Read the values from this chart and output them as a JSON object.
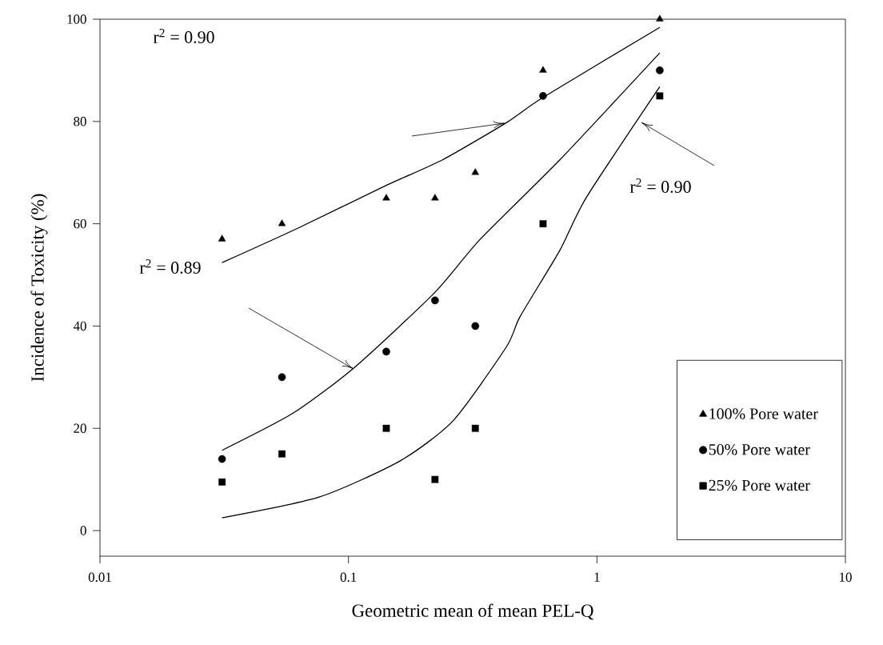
{
  "chart_data": {
    "type": "scatter",
    "xlabel": "Geometric mean of mean PEL-Q",
    "ylabel": "Incidence of Toxicity (%)",
    "log": "x",
    "xlim": [
      0.01,
      10
    ],
    "xticks": [
      0.01,
      0.1,
      1,
      10
    ],
    "ylim": [
      -5,
      100
    ],
    "yticks": [
      0,
      20,
      40,
      60,
      80,
      100
    ],
    "legend": "bottom right",
    "series": [
      {
        "name": "100% Pore water",
        "marker": "triangle",
        "color": "#000000",
        "x": [
          0.031,
          0.054,
          0.142,
          0.223,
          0.324,
          0.607,
          1.79
        ],
        "values": [
          57,
          60,
          65,
          65,
          70,
          90,
          100
        ]
      },
      {
        "name": "50% Pore water",
        "marker": "circle",
        "color": "#000000",
        "x": [
          0.031,
          0.054,
          0.142,
          0.223,
          0.324,
          0.607,
          1.79
        ],
        "values": [
          14,
          30,
          35,
          45,
          40,
          85,
          90
        ]
      },
      {
        "name": "25% Pore water",
        "marker": "square",
        "color": "#000000",
        "x": [
          0.031,
          0.054,
          0.142,
          0.223,
          0.324,
          0.607,
          1.79
        ],
        "values": [
          9.5,
          15,
          20,
          10,
          20,
          60,
          85
        ]
      },
      {
        "type": "line",
        "marker": "none",
        "color": "#000000",
        "x": [
          0.031,
          0.063,
          0.142,
          0.239,
          0.433,
          0.607,
          1.79
        ],
        "values": [
          52.4,
          59.2,
          67.5,
          72.5,
          79.8,
          84.7,
          98.4
        ]
      },
      {
        "type": "line",
        "marker": "none",
        "color": "#000000",
        "x": [
          0.031,
          0.06,
          0.1057,
          0.222,
          0.338,
          0.709,
          1.79
        ],
        "values": [
          15.7,
          23.0,
          31.9,
          46.5,
          56.9,
          72.5,
          93.4
        ]
      },
      {
        "type": "line",
        "marker": "none",
        "color": "#000000",
        "x": [
          0.031,
          0.0767,
          0.161,
          0.264,
          0.433,
          0.49,
          0.709,
          0.908,
          1.79
        ],
        "values": [
          2.5,
          6.6,
          13.6,
          21.5,
          36.0,
          41.8,
          54.8,
          65.2,
          86.8
        ]
      }
    ],
    "annotations": [
      "r$^{2}$ = 0.90",
      "r$^{2}$ = 0.89",
      "r$^{2}$ = 0.90"
    ]
  }
}
